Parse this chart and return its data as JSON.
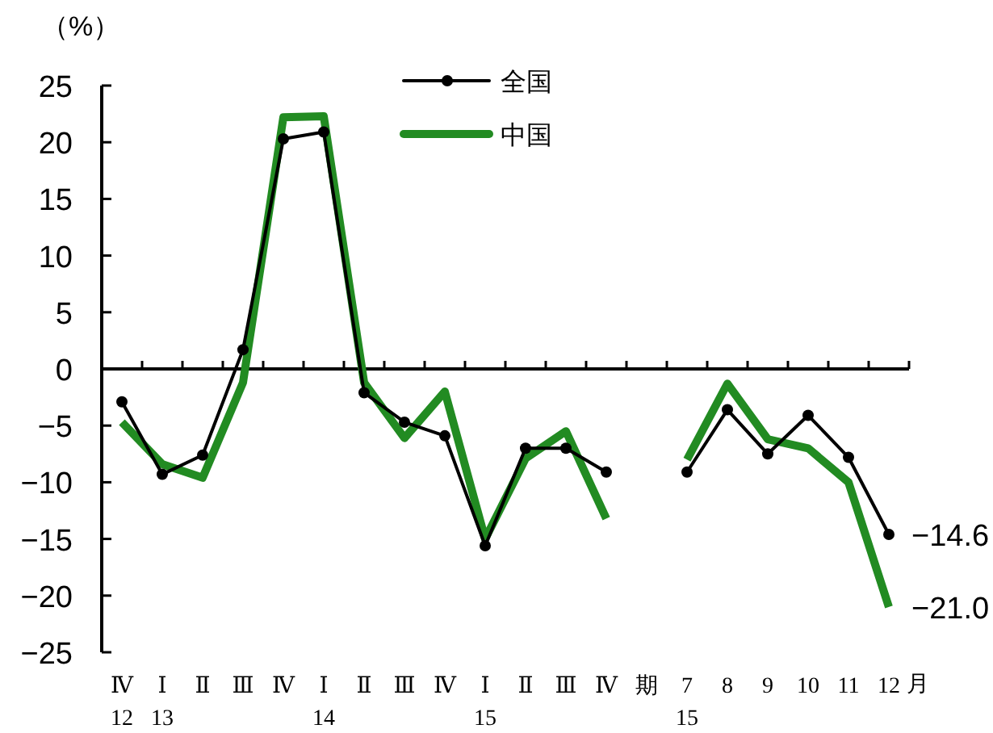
{
  "chart_data": {
    "type": "line",
    "ylabel": "（%）",
    "xlabel": "月",
    "categories": [
      "Ⅳ\n12",
      "Ⅰ\n13",
      "Ⅱ",
      "Ⅲ",
      "Ⅳ",
      "Ⅰ\n14",
      "Ⅱ",
      "Ⅲ",
      "Ⅳ",
      "Ⅰ\n15",
      "Ⅱ",
      "Ⅲ",
      "Ⅳ",
      "期",
      "7\n15",
      "8",
      "9",
      "10",
      "11",
      "12"
    ],
    "series": [
      {
        "name": "全国",
        "color": "#000000",
        "marker": "circle",
        "values": [
          -2.9,
          -9.3,
          -7.6,
          1.7,
          20.3,
          20.9,
          -2.1,
          -4.7,
          -5.9,
          -15.6,
          -7.0,
          -7.0,
          -9.1,
          null,
          -9.1,
          -3.6,
          -7.5,
          -4.1,
          -7.8,
          -14.6
        ]
      },
      {
        "name": "中国",
        "color": "#228b22",
        "marker": "none",
        "values": [
          -4.7,
          -8.4,
          -9.6,
          -1.2,
          22.2,
          22.3,
          -1.2,
          -6.1,
          -2.0,
          -15.0,
          -7.9,
          -5.5,
          -13.2,
          null,
          -8.0,
          -1.3,
          -6.2,
          -7.0,
          -10.0,
          -21.0
        ]
      }
    ],
    "ylim": [
      -25,
      25
    ],
    "yticks": [
      {
        "value": -25,
        "label": "−25"
      },
      {
        "value": -20,
        "label": "−20"
      },
      {
        "value": -15,
        "label": "−15"
      },
      {
        "value": -10,
        "label": "−10"
      },
      {
        "value": -5,
        "label": "−5"
      },
      0,
      5,
      10,
      15,
      20,
      25
    ],
    "legend": "top",
    "annotations": [
      {
        "text": "−14.6",
        "x": "12",
        "y": -14.6
      },
      {
        "text": "−21.0",
        "x": "12",
        "y": -21.0
      }
    ]
  }
}
